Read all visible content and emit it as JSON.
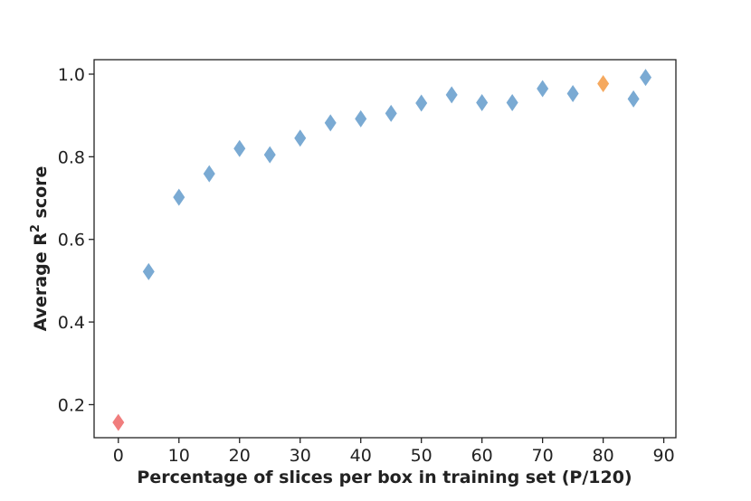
{
  "chart_data": {
    "type": "scatter",
    "marker": "diamond",
    "xlabel": "Percentage of slices per box in training set (P/120)",
    "ylabel_main": "Average R",
    "ylabel_sup": "2",
    "ylabel_tail": " score",
    "xlim": [
      -4,
      92
    ],
    "ylim": [
      0.12,
      1.035
    ],
    "xticks": [
      0,
      10,
      20,
      30,
      40,
      50,
      60,
      70,
      80,
      90
    ],
    "yticks": [
      0.2,
      0.4,
      0.6,
      0.8,
      1.0
    ],
    "colors": {
      "default": "#7aaad3",
      "min": "#f07d7d",
      "best": "#f5a95f"
    },
    "points": [
      {
        "x": 0,
        "y": 0.157,
        "color": "min"
      },
      {
        "x": 5,
        "y": 0.522,
        "color": "default"
      },
      {
        "x": 10,
        "y": 0.702,
        "color": "default"
      },
      {
        "x": 15,
        "y": 0.759,
        "color": "default"
      },
      {
        "x": 20,
        "y": 0.82,
        "color": "default"
      },
      {
        "x": 25,
        "y": 0.805,
        "color": "default"
      },
      {
        "x": 30,
        "y": 0.845,
        "color": "default"
      },
      {
        "x": 35,
        "y": 0.882,
        "color": "default"
      },
      {
        "x": 40,
        "y": 0.892,
        "color": "default"
      },
      {
        "x": 45,
        "y": 0.905,
        "color": "default"
      },
      {
        "x": 50,
        "y": 0.93,
        "color": "default"
      },
      {
        "x": 55,
        "y": 0.95,
        "color": "default"
      },
      {
        "x": 60,
        "y": 0.931,
        "color": "default"
      },
      {
        "x": 65,
        "y": 0.931,
        "color": "default"
      },
      {
        "x": 70,
        "y": 0.965,
        "color": "default"
      },
      {
        "x": 75,
        "y": 0.953,
        "color": "default"
      },
      {
        "x": 80,
        "y": 0.977,
        "color": "best"
      },
      {
        "x": 85,
        "y": 0.94,
        "color": "default"
      },
      {
        "x": 87,
        "y": 0.992,
        "color": "default"
      }
    ]
  }
}
